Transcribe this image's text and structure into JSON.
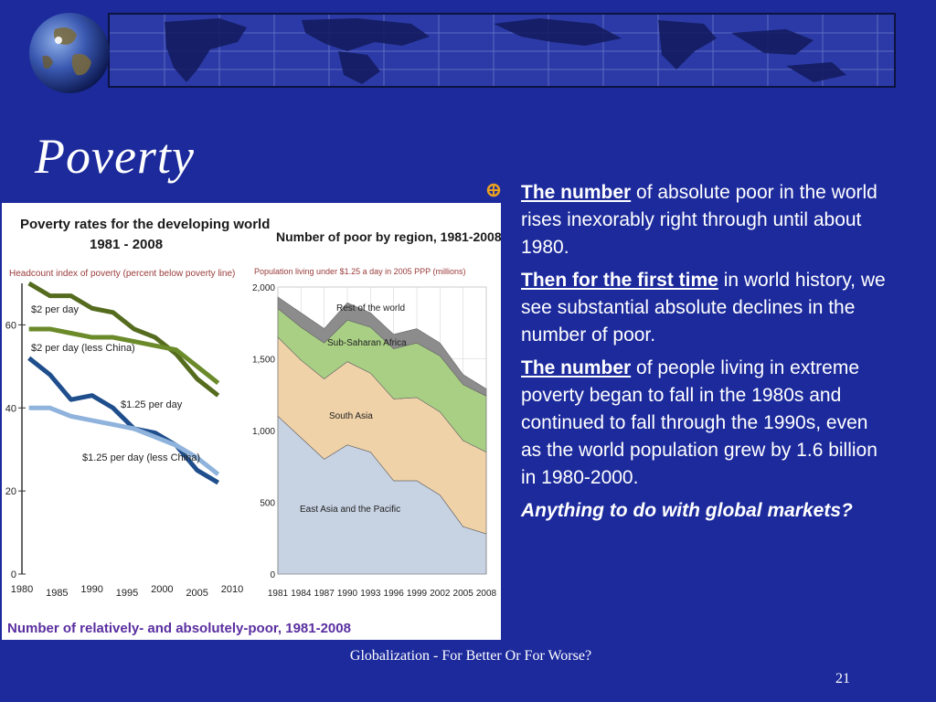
{
  "slide": {
    "title": "Poverty",
    "footer": "Globalization - For Better Or For Worse?",
    "page_number": "21",
    "colors": {
      "background": "#1c2a9c",
      "text": "#ffffff",
      "bullet": "#e8a020"
    }
  },
  "bullets": [
    {
      "lead": "The number",
      "rest": " of absolute poor in the world rises inexorably right through until about 1980."
    },
    {
      "lead": "Then for the first time",
      "rest": " in world history, we see substantial absolute declines in the number of poor."
    },
    {
      "lead": "The number",
      "rest": " of people living in extreme poverty began to fall in the 1980s and continued to fall through the 1990s, even as the world population grew by 1.6 billion in 1980-2000."
    },
    {
      "emphasis": "Anything to do with global markets?"
    }
  ],
  "figure_caption": "Number of relatively- and absolutely-poor, 1981-2008",
  "chart_data": [
    {
      "type": "line",
      "title": "Poverty rates for the developing world",
      "subtitle": "1981 - 2008",
      "ylabel": "Headcount index of poverty (percent below poverty line)",
      "x_ticks": [
        "1980",
        "1985",
        "1990",
        "1995",
        "2000",
        "2005",
        "2010"
      ],
      "y_ticks": [
        "0",
        "20",
        "40",
        "60"
      ],
      "xlim": [
        1980,
        2010
      ],
      "ylim": [
        0,
        70
      ],
      "grid": false,
      "series": [
        {
          "name": "$2 per day",
          "color": "#556b1e",
          "x": [
            1981,
            1984,
            1987,
            1990,
            1993,
            1996,
            1999,
            2002,
            2005,
            2008
          ],
          "y": [
            70,
            67,
            67,
            64,
            63,
            59,
            57,
            53,
            47,
            43
          ]
        },
        {
          "name": "$2 per day (less China)",
          "color": "#6b8a2a",
          "x": [
            1981,
            1984,
            1987,
            1990,
            1993,
            1996,
            1999,
            2002,
            2005,
            2008
          ],
          "y": [
            59,
            59,
            58,
            57,
            57,
            56,
            55,
            54,
            50,
            46
          ]
        },
        {
          "name": "$1.25 per day",
          "color": "#1f4e8c",
          "x": [
            1981,
            1984,
            1987,
            1990,
            1993,
            1996,
            1999,
            2002,
            2005,
            2008
          ],
          "y": [
            52,
            48,
            42,
            43,
            40,
            35,
            34,
            31,
            25,
            22
          ]
        },
        {
          "name": "$1.25 per day (less China)",
          "color": "#8fb3dc",
          "x": [
            1981,
            1984,
            1987,
            1990,
            1993,
            1996,
            1999,
            2002,
            2005,
            2008
          ],
          "y": [
            40,
            40,
            38,
            37,
            36,
            35,
            33,
            31,
            28,
            24
          ]
        }
      ]
    },
    {
      "type": "area",
      "title": "Number of poor by region, 1981-2008",
      "ylabel": "Population living under $1.25 a day in 2005 PPP (millions)",
      "x": [
        "1981",
        "1984",
        "1987",
        "1990",
        "1993",
        "1996",
        "1999",
        "2002",
        "2005",
        "2008"
      ],
      "y_ticks": [
        "0",
        "500",
        "1,000",
        "1,500",
        "2,000"
      ],
      "ylim": [
        0,
        2000
      ],
      "grid": true,
      "series": [
        {
          "name": "East Asia and the Pacific",
          "color": "#c7d2e3",
          "values": [
            1100,
            950,
            800,
            900,
            850,
            650,
            650,
            550,
            330,
            280
          ]
        },
        {
          "name": "South Asia",
          "color": "#f0d2a8",
          "values": [
            550,
            540,
            560,
            580,
            550,
            570,
            580,
            580,
            600,
            570
          ]
        },
        {
          "name": "Sub-Saharan Africa",
          "color": "#a9cf85",
          "values": [
            200,
            230,
            250,
            290,
            320,
            350,
            380,
            390,
            390,
            390
          ]
        },
        {
          "name": "Rest of the world",
          "color": "#8c8c8c",
          "values": [
            80,
            100,
            100,
            120,
            100,
            100,
            100,
            90,
            70,
            50
          ]
        }
      ]
    }
  ]
}
